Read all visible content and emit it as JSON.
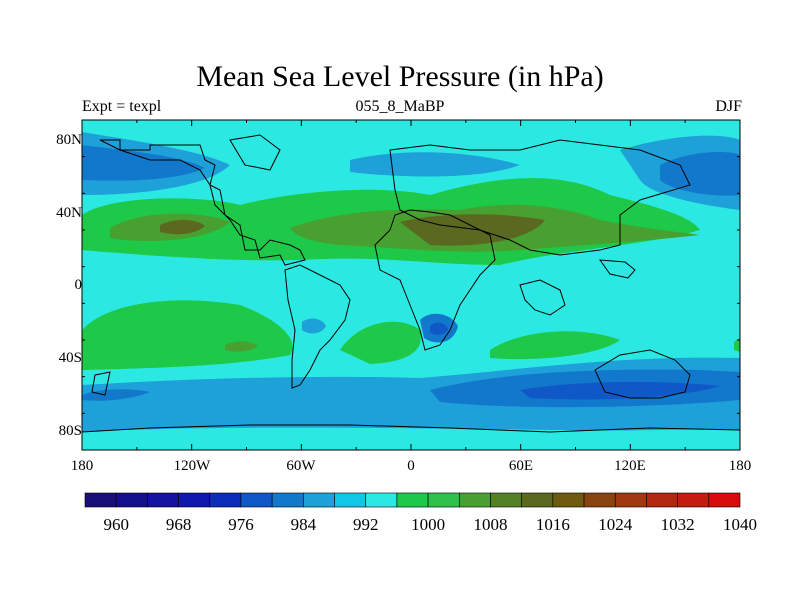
{
  "map": {
    "title": "Mean Sea Level Pressure (in hPa)",
    "left_label": "Expt = texpl",
    "center_label": "055_8_MaBP",
    "right_label": "DJF",
    "lat_labels": [
      "80N",
      "40N",
      "0",
      "40S",
      "80S"
    ],
    "lon_labels": [
      "180",
      "120W",
      "60W",
      "0",
      "60E",
      "120E",
      "180"
    ],
    "colorbar": {
      "colors": [
        "#1a0e78",
        "#160f8c",
        "#1410a0",
        "#1018b0",
        "#0c2cba",
        "#1058c8",
        "#1278cc",
        "#1ea0d8",
        "#10c8e6",
        "#2ce8e2",
        "#1ec848",
        "#30c04c",
        "#48a030",
        "#548028",
        "#5a6820",
        "#6e5a10",
        "#884410",
        "#a03810",
        "#b02810",
        "#c41c10",
        "#d80c0c"
      ],
      "tick_labels": [
        "960",
        "968",
        "976",
        "984",
        "992",
        "1000",
        "1008",
        "1016",
        "1024",
        "1032",
        "1040"
      ]
    },
    "palette": {
      "ocean_base": "#2ce8e2",
      "light_blue": "#1ea0d8",
      "mid_blue": "#1278cc",
      "deep_blue": "#1058c8",
      "green": "#1ec848",
      "olive": "#48a030",
      "dark_olive": "#5a6820"
    }
  }
}
